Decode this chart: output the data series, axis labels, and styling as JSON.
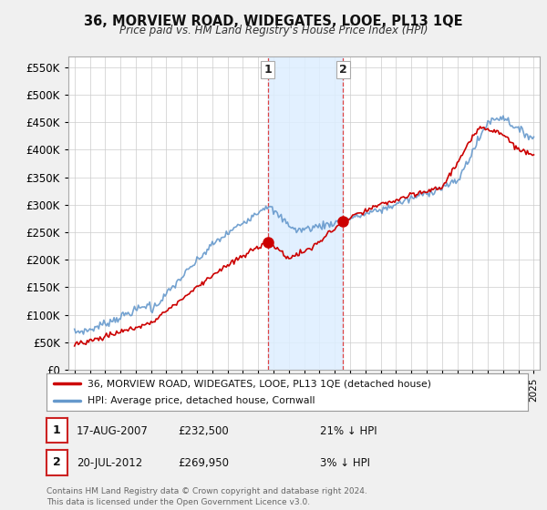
{
  "title": "36, MORVIEW ROAD, WIDEGATES, LOOE, PL13 1QE",
  "subtitle": "Price paid vs. HM Land Registry's House Price Index (HPI)",
  "legend_line1": "36, MORVIEW ROAD, WIDEGATES, LOOE, PL13 1QE (detached house)",
  "legend_line2": "HPI: Average price, detached house, Cornwall",
  "footnote": "Contains HM Land Registry data © Crown copyright and database right 2024.\nThis data is licensed under the Open Government Licence v3.0.",
  "table": [
    {
      "num": "1",
      "date": "17-AUG-2007",
      "price": "£232,500",
      "hpi": "21% ↓ HPI"
    },
    {
      "num": "2",
      "date": "20-JUL-2012",
      "price": "£269,950",
      "hpi": "3% ↓ HPI"
    }
  ],
  "sale_dates": [
    2007.63,
    2012.55
  ],
  "sale_prices": [
    232500,
    269950
  ],
  "sale_labels": [
    "1",
    "2"
  ],
  "shaded_region": [
    2007.63,
    2012.55
  ],
  "background_color": "#f0f0f0",
  "plot_bg_color": "#ffffff",
  "grid_color": "#cccccc",
  "red_line_color": "#cc0000",
  "blue_line_color": "#6699cc",
  "shade_color": "#ddeeff",
  "vline_color": "#dd4444",
  "ylim": [
    0,
    570000
  ],
  "yticks": [
    0,
    50000,
    100000,
    150000,
    200000,
    250000,
    300000,
    350000,
    400000,
    450000,
    500000,
    550000
  ]
}
